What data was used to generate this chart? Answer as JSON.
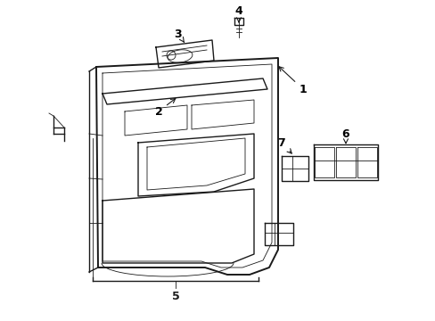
{
  "bg_color": "#ffffff",
  "line_color": "#1a1a1a",
  "figsize": [
    4.89,
    3.6
  ],
  "dpi": 100,
  "lw_main": 1.0,
  "lw_thin": 0.6,
  "lw_thick": 1.4
}
